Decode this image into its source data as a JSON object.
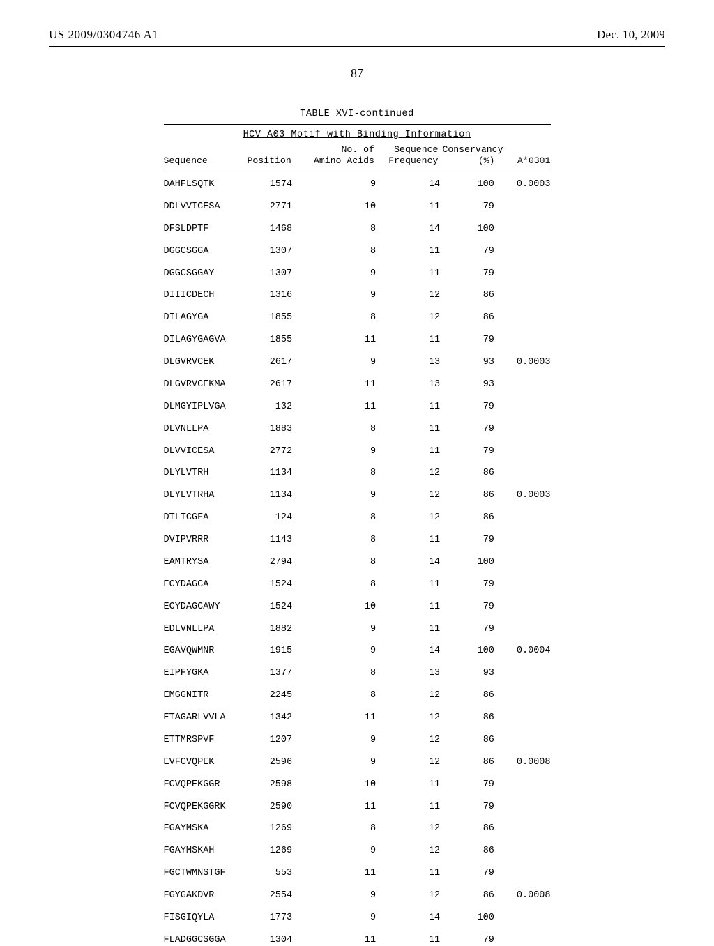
{
  "header": {
    "left": "US 2009/0304746 A1",
    "right": "Dec. 10, 2009"
  },
  "pageNumber": "87",
  "table": {
    "caption": "TABLE XVI-continued",
    "subtitle": "HCV A03 Motif with Binding Information",
    "columns": {
      "sequence": "Sequence",
      "position": "Position",
      "amino": "No. of\nAmino Acids",
      "frequency": "Sequence\nFrequency",
      "conservancy": "Conservancy\n(%)",
      "a0301": "A*0301"
    },
    "rows": [
      {
        "seq": "DAHFLSQTK",
        "pos": "1574",
        "aa": "9",
        "freq": "14",
        "cons": "100",
        "a": "0.0003"
      },
      {
        "seq": "DDLVVICESA",
        "pos": "2771",
        "aa": "10",
        "freq": "11",
        "cons": "79",
        "a": ""
      },
      {
        "seq": "DFSLDPTF",
        "pos": "1468",
        "aa": "8",
        "freq": "14",
        "cons": "100",
        "a": ""
      },
      {
        "seq": "DGGCSGGA",
        "pos": "1307",
        "aa": "8",
        "freq": "11",
        "cons": "79",
        "a": ""
      },
      {
        "seq": "DGGCSGGAY",
        "pos": "1307",
        "aa": "9",
        "freq": "11",
        "cons": "79",
        "a": ""
      },
      {
        "seq": "DIIICDECH",
        "pos": "1316",
        "aa": "9",
        "freq": "12",
        "cons": "86",
        "a": ""
      },
      {
        "seq": "DILAGYGA",
        "pos": "1855",
        "aa": "8",
        "freq": "12",
        "cons": "86",
        "a": ""
      },
      {
        "seq": "DILAGYGAGVA",
        "pos": "1855",
        "aa": "11",
        "freq": "11",
        "cons": "79",
        "a": ""
      },
      {
        "seq": "DLGVRVCEK",
        "pos": "2617",
        "aa": "9",
        "freq": "13",
        "cons": "93",
        "a": "0.0003"
      },
      {
        "seq": "DLGVRVCEKMA",
        "pos": "2617",
        "aa": "11",
        "freq": "13",
        "cons": "93",
        "a": ""
      },
      {
        "seq": "DLMGYIPLVGA",
        "pos": "132",
        "aa": "11",
        "freq": "11",
        "cons": "79",
        "a": ""
      },
      {
        "seq": "DLVNLLPA",
        "pos": "1883",
        "aa": "8",
        "freq": "11",
        "cons": "79",
        "a": ""
      },
      {
        "seq": "DLVVICESA",
        "pos": "2772",
        "aa": "9",
        "freq": "11",
        "cons": "79",
        "a": ""
      },
      {
        "seq": "DLYLVTRH",
        "pos": "1134",
        "aa": "8",
        "freq": "12",
        "cons": "86",
        "a": ""
      },
      {
        "seq": "DLYLVTRHA",
        "pos": "1134",
        "aa": "9",
        "freq": "12",
        "cons": "86",
        "a": "0.0003"
      },
      {
        "seq": "DTLTCGFA",
        "pos": "124",
        "aa": "8",
        "freq": "12",
        "cons": "86",
        "a": ""
      },
      {
        "seq": "DVIPVRRR",
        "pos": "1143",
        "aa": "8",
        "freq": "11",
        "cons": "79",
        "a": ""
      },
      {
        "seq": "EAMTRYSA",
        "pos": "2794",
        "aa": "8",
        "freq": "14",
        "cons": "100",
        "a": ""
      },
      {
        "seq": "ECYDAGCA",
        "pos": "1524",
        "aa": "8",
        "freq": "11",
        "cons": "79",
        "a": ""
      },
      {
        "seq": "ECYDAGCAWY",
        "pos": "1524",
        "aa": "10",
        "freq": "11",
        "cons": "79",
        "a": ""
      },
      {
        "seq": "EDLVNLLPA",
        "pos": "1882",
        "aa": "9",
        "freq": "11",
        "cons": "79",
        "a": ""
      },
      {
        "seq": "EGAVQWMNR",
        "pos": "1915",
        "aa": "9",
        "freq": "14",
        "cons": "100",
        "a": "0.0004"
      },
      {
        "seq": "EIPFYGKA",
        "pos": "1377",
        "aa": "8",
        "freq": "13",
        "cons": "93",
        "a": ""
      },
      {
        "seq": "EMGGNITR",
        "pos": "2245",
        "aa": "8",
        "freq": "12",
        "cons": "86",
        "a": ""
      },
      {
        "seq": "ETAGARLVVLA",
        "pos": "1342",
        "aa": "11",
        "freq": "12",
        "cons": "86",
        "a": ""
      },
      {
        "seq": "ETTMRSPVF",
        "pos": "1207",
        "aa": "9",
        "freq": "12",
        "cons": "86",
        "a": ""
      },
      {
        "seq": "EVFCVQPEK",
        "pos": "2596",
        "aa": "9",
        "freq": "12",
        "cons": "86",
        "a": "0.0008"
      },
      {
        "seq": "FCVQPEKGGR",
        "pos": "2598",
        "aa": "10",
        "freq": "11",
        "cons": "79",
        "a": ""
      },
      {
        "seq": "FCVQPEKGGRK",
        "pos": "2590",
        "aa": "11",
        "freq": "11",
        "cons": "79",
        "a": ""
      },
      {
        "seq": "FGAYMSKA",
        "pos": "1269",
        "aa": "8",
        "freq": "12",
        "cons": "86",
        "a": ""
      },
      {
        "seq": "FGAYMSKAH",
        "pos": "1269",
        "aa": "9",
        "freq": "12",
        "cons": "86",
        "a": ""
      },
      {
        "seq": "FGCTWMNSTGF",
        "pos": "553",
        "aa": "11",
        "freq": "11",
        "cons": "79",
        "a": ""
      },
      {
        "seq": "FGYGAKDVR",
        "pos": "2554",
        "aa": "9",
        "freq": "12",
        "cons": "86",
        "a": "0.0008"
      },
      {
        "seq": "FISGIQYLA",
        "pos": "1773",
        "aa": "9",
        "freq": "14",
        "cons": "100",
        "a": ""
      },
      {
        "seq": "FLADGGCSGGA",
        "pos": "1304",
        "aa": "11",
        "freq": "11",
        "cons": "79",
        "a": ""
      }
    ]
  }
}
